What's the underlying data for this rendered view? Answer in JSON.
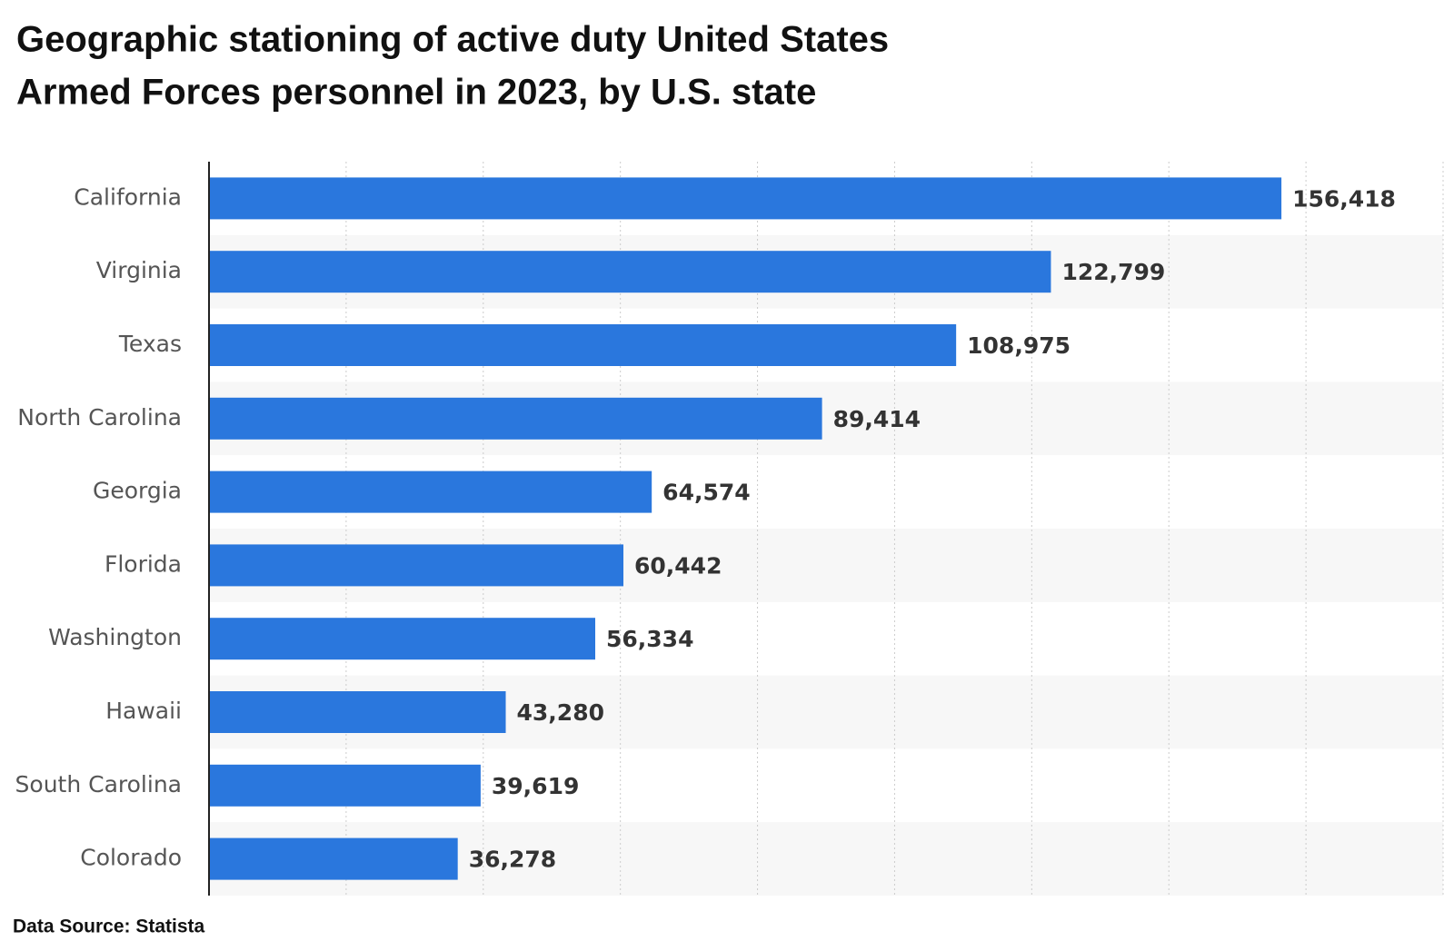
{
  "chart_data": {
    "type": "hbar",
    "title": [
      "Geographic stationing of active duty United States",
      "Armed Forces personnel in 2023, by U.S. state"
    ],
    "categories": [
      "California",
      "Virginia",
      "Texas",
      "North Carolina",
      "Georgia",
      "Florida",
      "Washington",
      "Hawaii",
      "South Carolina",
      "Colorado"
    ],
    "values": [
      156418,
      122799,
      108975,
      89414,
      64574,
      60442,
      56334,
      43280,
      39619,
      36278
    ],
    "value_labels": [
      "156,418",
      "122,799",
      "108,975",
      "89,414",
      "64,574",
      "60,442",
      "56,334",
      "43,280",
      "39,619",
      "36,278"
    ],
    "color": "#2a77dd",
    "xlim": [
      0,
      180000
    ],
    "xticks": [
      20000,
      40000,
      60000,
      80000,
      100000,
      120000,
      140000,
      160000,
      180000
    ],
    "grid": true,
    "source": "Data Source: Statista"
  }
}
